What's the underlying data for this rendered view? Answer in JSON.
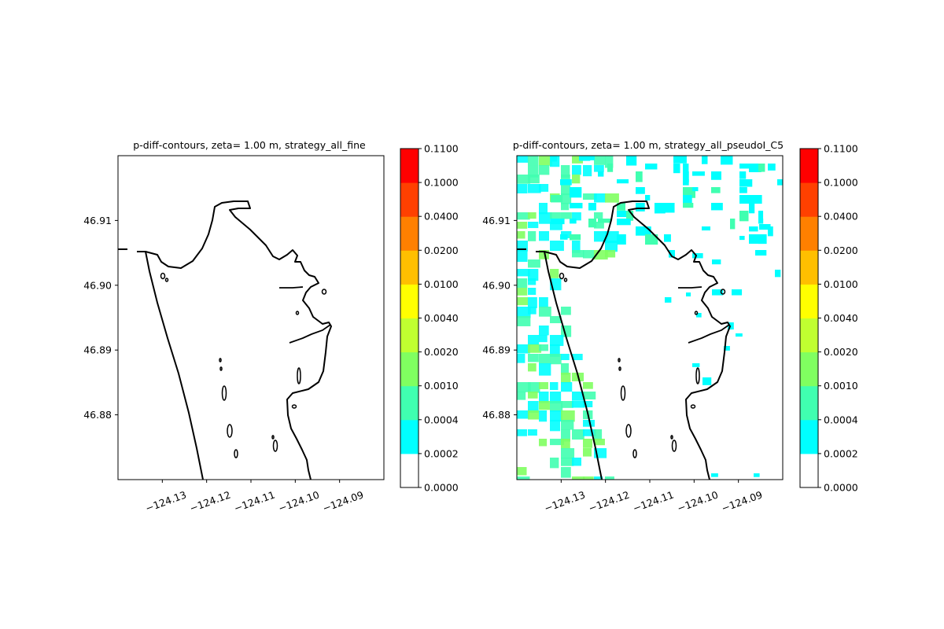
{
  "chart_data": [
    {
      "type": "heatmap",
      "title": "p-diff-contours, zeta= 1.00 m, strategy_all_fine",
      "xlabel": "",
      "ylabel": "",
      "xlim": [
        -124.14,
        -124.08
      ],
      "ylim": [
        46.87,
        46.92
      ],
      "x_ticks": [
        -124.13,
        -124.12,
        -124.11,
        -124.1,
        -124.09
      ],
      "x_tick_labels": [
        "−124.13",
        "−124.12",
        "−124.11",
        "−124.10",
        "−124.09"
      ],
      "y_ticks": [
        46.88,
        46.89,
        46.9,
        46.91
      ],
      "y_tick_labels": [
        "46.88",
        "46.89",
        "46.90",
        "46.91"
      ],
      "grid": false,
      "field": "empty (all values in 0.0000–0.0002 band)"
    },
    {
      "type": "heatmap",
      "title": "p-diff-contours, zeta= 1.00 m, strategy_all_pseudoI_C5",
      "xlabel": "",
      "ylabel": "",
      "xlim": [
        -124.14,
        -124.08
      ],
      "ylim": [
        46.87,
        46.92
      ],
      "x_ticks": [
        -124.13,
        -124.12,
        -124.11,
        -124.1,
        -124.09
      ],
      "x_tick_labels": [
        "−124.13",
        "−124.12",
        "−124.11",
        "−124.10",
        "−124.09"
      ],
      "y_ticks": [
        46.88,
        46.89,
        46.9,
        46.91
      ],
      "y_tick_labels": [
        "46.88",
        "46.89",
        "46.90",
        "46.91"
      ],
      "grid": false,
      "field": "patchy cyan/green values (mostly 0.0002–0.0020) concentrated west of the coastline and in the northern third"
    }
  ],
  "colorbar": {
    "levels": [
      "0.0000",
      "0.0002",
      "0.0004",
      "0.0010",
      "0.0020",
      "0.0040",
      "0.0100",
      "0.0200",
      "0.0400",
      "0.1000",
      "0.1100"
    ],
    "colors": [
      "#ffffff",
      "#00ffff",
      "#40ffb0",
      "#80ff60",
      "#c0ff30",
      "#ffff00",
      "#ffbf00",
      "#ff8000",
      "#ff4000",
      "#ff0000"
    ]
  },
  "coastline_color": "#000000"
}
